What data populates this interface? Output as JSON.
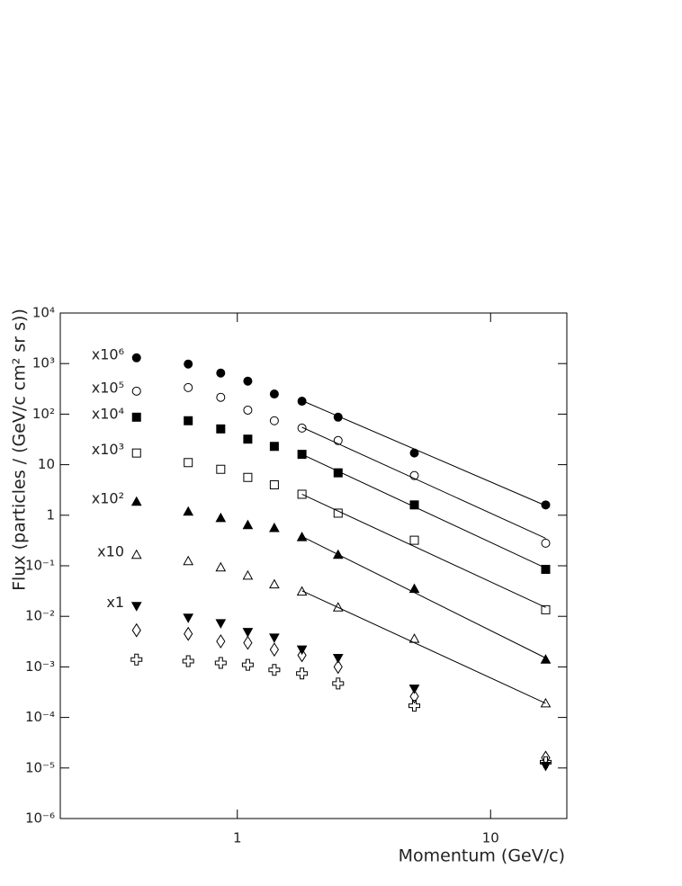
{
  "chart_data": {
    "type": "scatter",
    "x_label": "Momentum (GeV/c)",
    "y_label": "Flux (particles / (GeV/c cm² sr s))",
    "log_x": true,
    "log_y": true,
    "xlim": [
      0.2,
      20
    ],
    "ylim": [
      1e-06,
      10000
    ],
    "xticks": [
      1,
      10
    ],
    "yticks": [
      {
        "value": 1e-06,
        "label": "10⁻⁶"
      },
      {
        "value": 1e-05,
        "label": "10⁻⁵"
      },
      {
        "value": 0.0001,
        "label": "10⁻⁴"
      },
      {
        "value": 0.001,
        "label": "10⁻³"
      },
      {
        "value": 0.01,
        "label": "10⁻²"
      },
      {
        "value": 0.1,
        "label": "10⁻¹"
      },
      1,
      10,
      {
        "value": 100,
        "label": "10²"
      },
      {
        "value": 1000,
        "label": "10³"
      },
      {
        "value": 10000,
        "label": "10⁴"
      }
    ],
    "x": [
      0.4,
      0.64,
      0.86,
      1.1,
      1.4,
      1.8,
      2.5,
      5,
      16.5
    ],
    "series": [
      {
        "name": "x10⁶",
        "color": "#000000",
        "marker": "circle",
        "filled": true,
        "values": [
          1300,
          980,
          650,
          450,
          250,
          180,
          87,
          17,
          1.6
        ],
        "fit": {
          "x": [
            1.8,
            16.5
          ],
          "values": [
            185,
            1.55
          ]
        }
      },
      {
        "name": "x10⁵",
        "color": "#000000",
        "marker": "circle",
        "filled": false,
        "values": [
          285,
          335,
          215,
          120,
          74,
          53,
          30,
          6.1,
          0.28
        ],
        "fit": {
          "x": [
            1.8,
            16.5
          ],
          "values": [
            55,
            0.35
          ]
        }
      },
      {
        "name": "x10⁴",
        "color": "#000000",
        "marker": "square",
        "filled": true,
        "values": [
          87,
          74,
          51,
          32,
          23,
          16,
          6.9,
          1.6,
          0.085
        ],
        "fit": {
          "x": [
            1.8,
            16.5
          ],
          "values": [
            16,
            0.09
          ]
        }
      },
      {
        "name": "x10³",
        "color": "#000000",
        "marker": "square",
        "filled": false,
        "values": [
          17,
          11,
          8.1,
          5.6,
          4,
          2.6,
          1.1,
          0.32,
          0.0135
        ],
        "fit": {
          "x": [
            1.8,
            16.5
          ],
          "values": [
            2.6,
            0.015
          ]
        }
      },
      {
        "name": "x10²",
        "color": "#000000",
        "marker": "triangle",
        "filled": true,
        "values": [
          1.85,
          1.18,
          0.88,
          0.64,
          0.56,
          0.37,
          0.165,
          0.035,
          0.0014
        ],
        "fit": {
          "x": [
            1.8,
            16.5
          ],
          "values": [
            0.38,
            0.0015
          ]
        }
      },
      {
        "name": "x10",
        "color": "#000000",
        "marker": "triangle",
        "filled": false,
        "values": [
          0.165,
          0.124,
          0.093,
          0.064,
          0.043,
          0.031,
          0.015,
          0.0036,
          0.00019
        ],
        "fit": {
          "x": [
            1.8,
            16.5
          ],
          "values": [
            0.032,
            0.00019
          ]
        }
      },
      {
        "name": "x1",
        "color": "#000000",
        "marker": "triangle-down",
        "filled": true,
        "values": [
          0.016,
          0.0094,
          0.0073,
          0.0049,
          0.0038,
          0.0022,
          0.0015,
          0.00037,
          1.1e-05
        ]
      },
      {
        "color": "#000000",
        "marker": "diamond",
        "filled": false,
        "values": [
          0.0053,
          0.0045,
          0.0032,
          0.003,
          0.0022,
          0.0017,
          0.001,
          0.00026,
          1.6e-05
        ]
      },
      {
        "color": "#000000",
        "marker": "cross",
        "filled": false,
        "values": [
          0.0014,
          0.0013,
          0.0012,
          0.0011,
          0.00087,
          0.00074,
          0.00047,
          0.00017,
          1.3e-05
        ]
      }
    ]
  }
}
